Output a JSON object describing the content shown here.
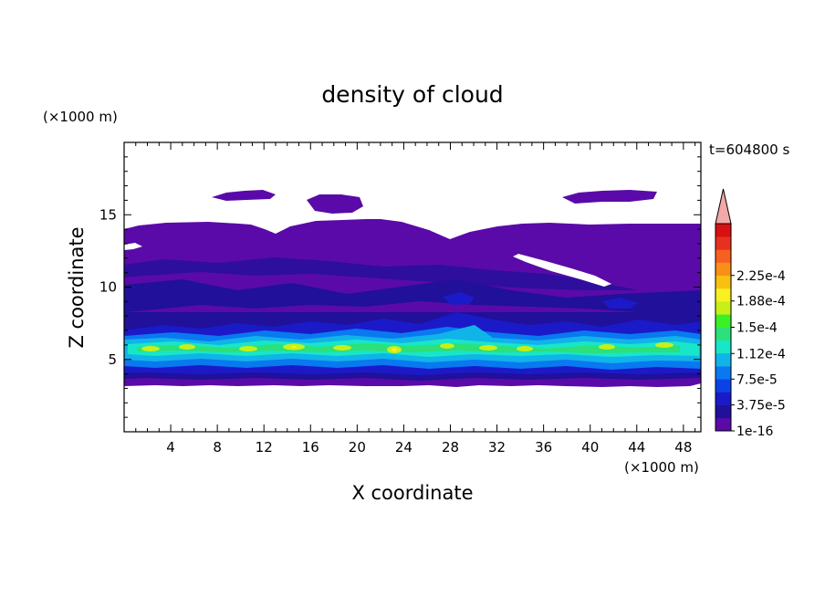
{
  "chart_data": {
    "type": "heatmap",
    "title": "density of cloud",
    "time_label": "t=604800 s",
    "xlabel": "X coordinate",
    "ylabel": "Z coordinate",
    "x_unit": "(×1000 m)",
    "y_unit": "(×1000 m)",
    "xlim": [
      0,
      49.5
    ],
    "ylim": [
      0,
      20
    ],
    "x_ticks": [
      4,
      8,
      12,
      16,
      20,
      24,
      28,
      32,
      36,
      40,
      44,
      48
    ],
    "y_ticks": [
      5,
      10,
      15
    ],
    "colorbar": {
      "labels": [
        "2.25e-4",
        "1.88e-4",
        "1.5e-4",
        "1.12e-4",
        "7.5e-5",
        "3.75e-5",
        "1e-16"
      ],
      "label_values": [
        0.000225,
        0.000188,
        0.00015,
        0.000112,
        7.5e-05,
        3.75e-05,
        1e-16
      ],
      "colors": [
        "#5a0aa8",
        "#20109a",
        "#1a1ac8",
        "#0a42e8",
        "#0a78f0",
        "#10b4e8",
        "#18e6c8",
        "#2ce07a",
        "#3cf028",
        "#c6f018",
        "#f8f020",
        "#f8c010",
        "#f89018",
        "#f86020",
        "#e83020",
        "#d81010"
      ],
      "extend_color": "#f4a8a8"
    }
  }
}
